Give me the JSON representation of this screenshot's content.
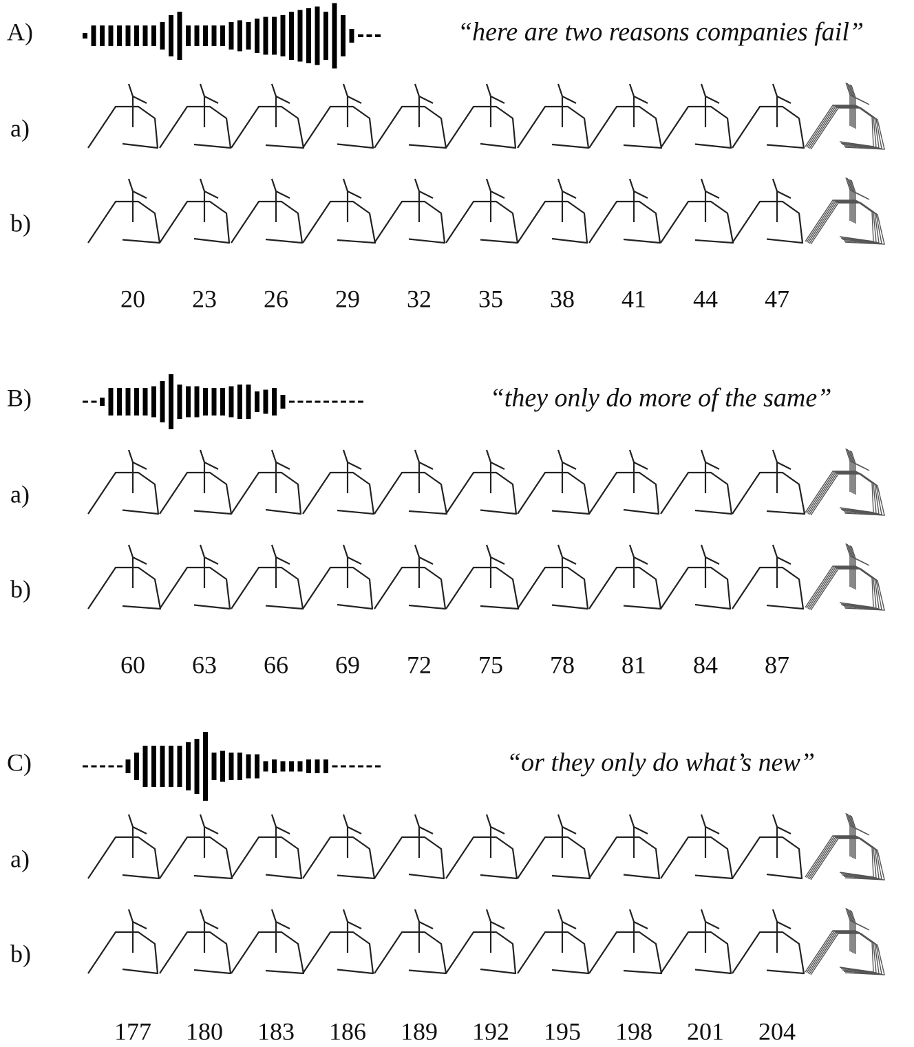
{
  "panels": [
    {
      "label": "A)",
      "quote": "“here are two reasons companies fail”",
      "rows": [
        "a)",
        "b)"
      ],
      "frames": [
        20,
        23,
        26,
        29,
        32,
        35,
        38,
        41,
        44,
        47
      ]
    },
    {
      "label": "B)",
      "quote": "“they only do more of the same”",
      "rows": [
        "a)",
        "b)"
      ],
      "frames": [
        60,
        63,
        66,
        69,
        72,
        75,
        78,
        81,
        84,
        87
      ]
    },
    {
      "label": "C)",
      "quote": "“or they only do what’s new”",
      "rows": [
        "a)",
        "b)"
      ],
      "frames": [
        177,
        180,
        183,
        186,
        189,
        192,
        195,
        198,
        201,
        204
      ]
    }
  ]
}
